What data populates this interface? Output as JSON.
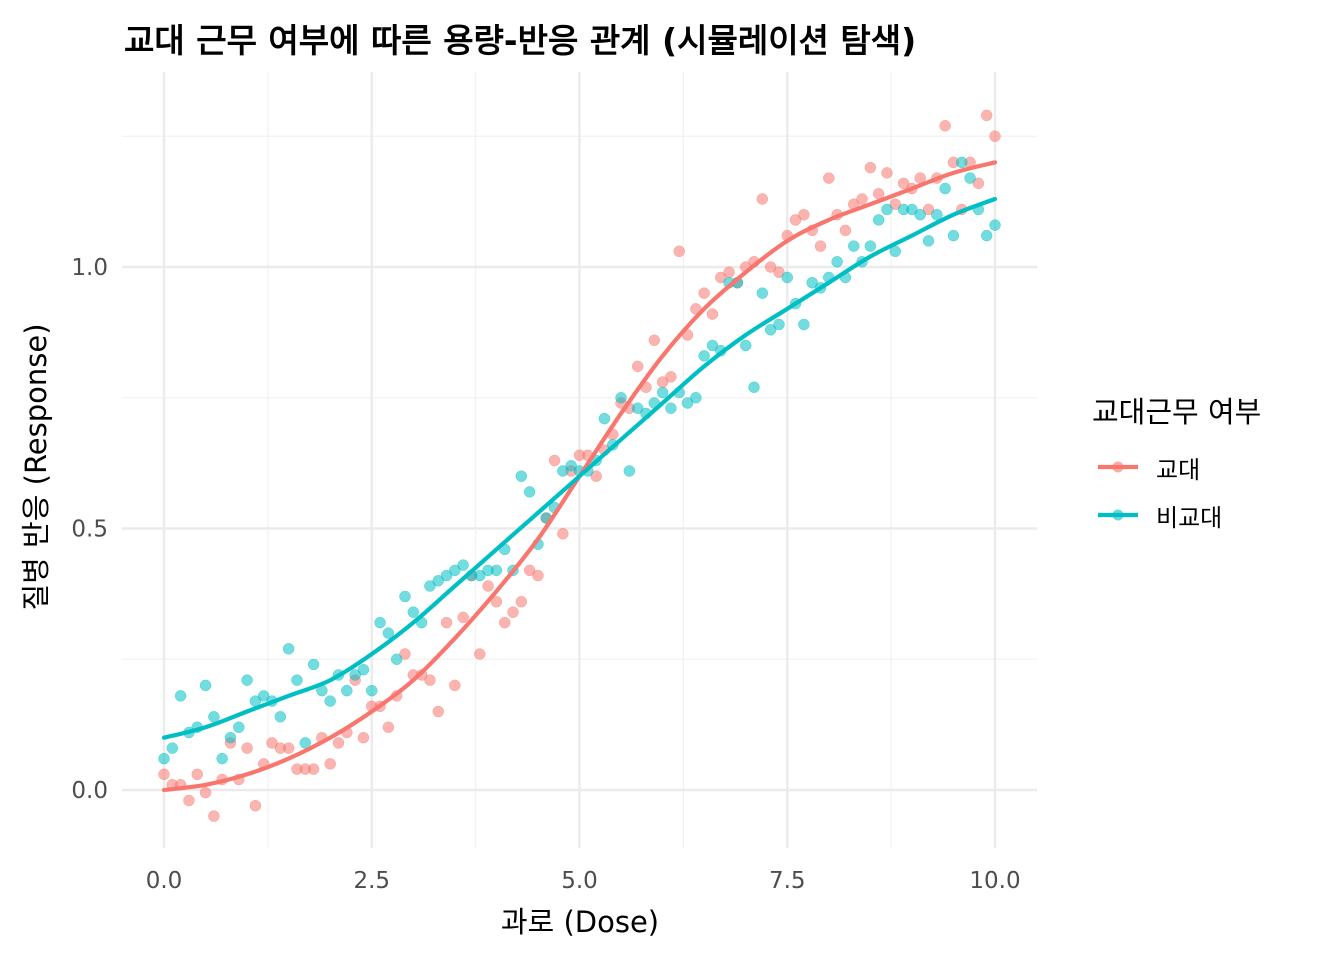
{
  "chart_data": {
    "type": "scatter",
    "title": "교대 근무 여부에 따른 용량-반응 관계 (시뮬레이션 탐색)",
    "xlabel": "과로 (Dose)",
    "ylabel": "질병 반응 (Response)",
    "xlim": [
      -0.5,
      10.5
    ],
    "ylim": [
      -0.1,
      1.33
    ],
    "x_ticks": [
      0.0,
      2.5,
      5.0,
      7.5,
      10.0
    ],
    "x_tick_labels": [
      "0.0",
      "2.5",
      "5.0",
      "7.5",
      "10.0"
    ],
    "y_ticks": [
      0.0,
      0.5,
      1.0
    ],
    "y_tick_labels": [
      "0.0",
      "0.5",
      "1.0"
    ],
    "grid": true,
    "legend": {
      "title": "교대근무 여부",
      "position": "right",
      "entries": [
        "교대",
        "비교대"
      ]
    },
    "series": [
      {
        "name": "교대",
        "color": "#F8766D",
        "points": [
          [
            0.0,
            0.03
          ],
          [
            0.1,
            0.01
          ],
          [
            0.2,
            0.01
          ],
          [
            0.3,
            -0.02
          ],
          [
            0.4,
            0.03
          ],
          [
            0.5,
            -0.005
          ],
          [
            0.6,
            -0.05
          ],
          [
            0.7,
            0.02
          ],
          [
            0.8,
            0.09
          ],
          [
            0.9,
            0.02
          ],
          [
            1.0,
            0.08
          ],
          [
            1.1,
            -0.03
          ],
          [
            1.2,
            0.05
          ],
          [
            1.3,
            0.09
          ],
          [
            1.4,
            0.08
          ],
          [
            1.5,
            0.08
          ],
          [
            1.6,
            0.04
          ],
          [
            1.7,
            0.04
          ],
          [
            1.8,
            0.04
          ],
          [
            1.9,
            0.1
          ],
          [
            2.0,
            0.05
          ],
          [
            2.1,
            0.09
          ],
          [
            2.2,
            0.11
          ],
          [
            2.3,
            0.21
          ],
          [
            2.4,
            0.1
          ],
          [
            2.5,
            0.16
          ],
          [
            2.6,
            0.16
          ],
          [
            2.7,
            0.12
          ],
          [
            2.8,
            0.18
          ],
          [
            2.9,
            0.26
          ],
          [
            3.0,
            0.22
          ],
          [
            3.1,
            0.22
          ],
          [
            3.2,
            0.21
          ],
          [
            3.3,
            0.15
          ],
          [
            3.4,
            0.32
          ],
          [
            3.5,
            0.2
          ],
          [
            3.6,
            0.33
          ],
          [
            3.7,
            0.41
          ],
          [
            3.8,
            0.26
          ],
          [
            3.9,
            0.39
          ],
          [
            4.0,
            0.36
          ],
          [
            4.1,
            0.32
          ],
          [
            4.2,
            0.34
          ],
          [
            4.3,
            0.36
          ],
          [
            4.4,
            0.42
          ],
          [
            4.5,
            0.41
          ],
          [
            4.6,
            0.52
          ],
          [
            4.7,
            0.63
          ],
          [
            4.8,
            0.49
          ],
          [
            4.9,
            0.61
          ],
          [
            5.0,
            0.64
          ],
          [
            5.1,
            0.64
          ],
          [
            5.2,
            0.6
          ],
          [
            5.3,
            0.65
          ],
          [
            5.4,
            0.68
          ],
          [
            5.5,
            0.74
          ],
          [
            5.6,
            0.73
          ],
          [
            5.7,
            0.81
          ],
          [
            5.8,
            0.77
          ],
          [
            5.9,
            0.86
          ],
          [
            6.0,
            0.78
          ],
          [
            6.1,
            0.79
          ],
          [
            6.2,
            1.03
          ],
          [
            6.3,
            0.87
          ],
          [
            6.4,
            0.92
          ],
          [
            6.5,
            0.95
          ],
          [
            6.6,
            0.91
          ],
          [
            6.7,
            0.98
          ],
          [
            6.8,
            0.99
          ],
          [
            6.9,
            0.97
          ],
          [
            7.0,
            1.0
          ],
          [
            7.1,
            1.01
          ],
          [
            7.2,
            1.13
          ],
          [
            7.3,
            1.0
          ],
          [
            7.4,
            0.99
          ],
          [
            7.5,
            1.06
          ],
          [
            7.6,
            1.09
          ],
          [
            7.7,
            1.1
          ],
          [
            7.8,
            1.07
          ],
          [
            7.9,
            1.04
          ],
          [
            8.0,
            1.17
          ],
          [
            8.1,
            1.1
          ],
          [
            8.2,
            1.07
          ],
          [
            8.3,
            1.12
          ],
          [
            8.4,
            1.13
          ],
          [
            8.5,
            1.19
          ],
          [
            8.6,
            1.14
          ],
          [
            8.7,
            1.18
          ],
          [
            8.8,
            1.12
          ],
          [
            8.9,
            1.16
          ],
          [
            9.0,
            1.15
          ],
          [
            9.1,
            1.17
          ],
          [
            9.2,
            1.11
          ],
          [
            9.3,
            1.17
          ],
          [
            9.4,
            1.27
          ],
          [
            9.5,
            1.2
          ],
          [
            9.6,
            1.11
          ],
          [
            9.7,
            1.2
          ],
          [
            9.8,
            1.16
          ],
          [
            9.9,
            1.29
          ],
          [
            10.0,
            1.25
          ]
        ],
        "fit": [
          [
            0.0,
            0.0
          ],
          [
            0.5,
            0.01
          ],
          [
            1.0,
            0.03
          ],
          [
            1.5,
            0.06
          ],
          [
            2.0,
            0.1
          ],
          [
            2.5,
            0.15
          ],
          [
            3.0,
            0.21
          ],
          [
            3.5,
            0.29
          ],
          [
            4.0,
            0.38
          ],
          [
            4.5,
            0.48
          ],
          [
            5.0,
            0.6
          ],
          [
            5.5,
            0.72
          ],
          [
            6.0,
            0.83
          ],
          [
            6.5,
            0.92
          ],
          [
            7.0,
            0.99
          ],
          [
            7.5,
            1.05
          ],
          [
            8.0,
            1.09
          ],
          [
            8.5,
            1.12
          ],
          [
            9.0,
            1.15
          ],
          [
            9.5,
            1.18
          ],
          [
            10.0,
            1.2
          ]
        ]
      },
      {
        "name": "비교대",
        "color": "#00BFC4",
        "points": [
          [
            0.0,
            0.06
          ],
          [
            0.1,
            0.08
          ],
          [
            0.2,
            0.18
          ],
          [
            0.3,
            0.11
          ],
          [
            0.4,
            0.12
          ],
          [
            0.5,
            0.2
          ],
          [
            0.6,
            0.14
          ],
          [
            0.7,
            0.06
          ],
          [
            0.8,
            0.1
          ],
          [
            0.9,
            0.12
          ],
          [
            1.0,
            0.21
          ],
          [
            1.1,
            0.17
          ],
          [
            1.2,
            0.18
          ],
          [
            1.3,
            0.17
          ],
          [
            1.4,
            0.14
          ],
          [
            1.5,
            0.27
          ],
          [
            1.6,
            0.21
          ],
          [
            1.7,
            0.09
          ],
          [
            1.8,
            0.24
          ],
          [
            1.9,
            0.19
          ],
          [
            2.0,
            0.17
          ],
          [
            2.1,
            0.22
          ],
          [
            2.2,
            0.19
          ],
          [
            2.3,
            0.22
          ],
          [
            2.4,
            0.23
          ],
          [
            2.5,
            0.19
          ],
          [
            2.6,
            0.32
          ],
          [
            2.7,
            0.3
          ],
          [
            2.8,
            0.25
          ],
          [
            2.9,
            0.37
          ],
          [
            3.0,
            0.34
          ],
          [
            3.1,
            0.32
          ],
          [
            3.2,
            0.39
          ],
          [
            3.3,
            0.4
          ],
          [
            3.4,
            0.41
          ],
          [
            3.5,
            0.42
          ],
          [
            3.6,
            0.43
          ],
          [
            3.7,
            0.41
          ],
          [
            3.8,
            0.41
          ],
          [
            3.9,
            0.42
          ],
          [
            4.0,
            0.42
          ],
          [
            4.1,
            0.46
          ],
          [
            4.2,
            0.42
          ],
          [
            4.3,
            0.6
          ],
          [
            4.4,
            0.57
          ],
          [
            4.5,
            0.47
          ],
          [
            4.6,
            0.52
          ],
          [
            4.7,
            0.54
          ],
          [
            4.8,
            0.61
          ],
          [
            4.9,
            0.62
          ],
          [
            5.0,
            0.61
          ],
          [
            5.1,
            0.61
          ],
          [
            5.2,
            0.63
          ],
          [
            5.3,
            0.71
          ],
          [
            5.4,
            0.66
          ],
          [
            5.5,
            0.75
          ],
          [
            5.6,
            0.61
          ],
          [
            5.7,
            0.73
          ],
          [
            5.8,
            0.72
          ],
          [
            5.9,
            0.74
          ],
          [
            6.0,
            0.76
          ],
          [
            6.1,
            0.73
          ],
          [
            6.2,
            0.76
          ],
          [
            6.3,
            0.74
          ],
          [
            6.4,
            0.75
          ],
          [
            6.5,
            0.83
          ],
          [
            6.6,
            0.85
          ],
          [
            6.7,
            0.84
          ],
          [
            6.8,
            0.97
          ],
          [
            6.9,
            0.97
          ],
          [
            7.0,
            0.85
          ],
          [
            7.1,
            0.77
          ],
          [
            7.2,
            0.95
          ],
          [
            7.3,
            0.88
          ],
          [
            7.4,
            0.89
          ],
          [
            7.5,
            0.98
          ],
          [
            7.6,
            0.93
          ],
          [
            7.7,
            0.89
          ],
          [
            7.8,
            0.97
          ],
          [
            7.9,
            0.96
          ],
          [
            8.0,
            0.98
          ],
          [
            8.1,
            1.01
          ],
          [
            8.2,
            0.98
          ],
          [
            8.3,
            1.04
          ],
          [
            8.4,
            1.01
          ],
          [
            8.5,
            1.04
          ],
          [
            8.6,
            1.09
          ],
          [
            8.7,
            1.11
          ],
          [
            8.8,
            1.03
          ],
          [
            8.9,
            1.11
          ],
          [
            9.0,
            1.11
          ],
          [
            9.1,
            1.1
          ],
          [
            9.2,
            1.05
          ],
          [
            9.3,
            1.1
          ],
          [
            9.4,
            1.15
          ],
          [
            9.5,
            1.06
          ],
          [
            9.6,
            1.2
          ],
          [
            9.7,
            1.17
          ],
          [
            9.8,
            1.11
          ],
          [
            9.9,
            1.06
          ],
          [
            10.0,
            1.08
          ]
        ],
        "fit": [
          [
            0.0,
            0.1
          ],
          [
            0.5,
            0.12
          ],
          [
            1.0,
            0.15
          ],
          [
            1.5,
            0.18
          ],
          [
            2.0,
            0.21
          ],
          [
            2.5,
            0.26
          ],
          [
            3.0,
            0.32
          ],
          [
            3.5,
            0.39
          ],
          [
            4.0,
            0.46
          ],
          [
            4.5,
            0.53
          ],
          [
            5.0,
            0.6
          ],
          [
            5.5,
            0.67
          ],
          [
            6.0,
            0.74
          ],
          [
            6.5,
            0.81
          ],
          [
            7.0,
            0.87
          ],
          [
            7.5,
            0.92
          ],
          [
            8.0,
            0.97
          ],
          [
            8.5,
            1.02
          ],
          [
            9.0,
            1.06
          ],
          [
            9.5,
            1.1
          ],
          [
            10.0,
            1.13
          ]
        ]
      }
    ]
  }
}
